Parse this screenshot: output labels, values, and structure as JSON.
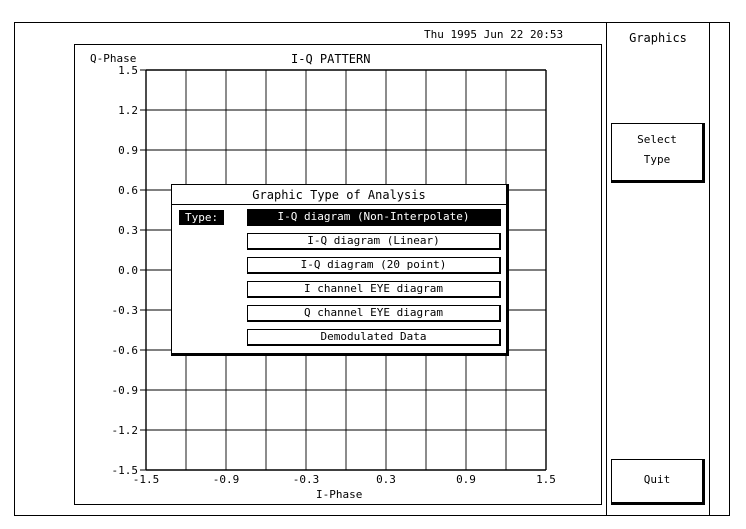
{
  "header": {
    "datetime": "Thu 1995 Jun 22 20:53"
  },
  "plot": {
    "title": "I-Q PATTERN",
    "ylabel": "Q-Phase",
    "xlabel": "I-Phase",
    "xticks": [
      "-1.5",
      "-0.9",
      "-0.3",
      "0.3",
      "0.9",
      "1.5"
    ],
    "yticks": [
      "1.5",
      "1.2",
      "0.9",
      "0.6",
      "0.3",
      "0.0",
      "-0.3",
      "-0.6",
      "-0.9",
      "-1.2",
      "-1.5"
    ],
    "xlim": [
      -1.5,
      1.5
    ],
    "ylim": [
      -1.5,
      1.5
    ]
  },
  "panel": {
    "title": "Graphics",
    "select_type": [
      "Select",
      "Type"
    ],
    "quit": "Quit"
  },
  "dialog": {
    "title": "Graphic Type of Analysis",
    "type_label": "Type:",
    "options": [
      "I-Q diagram (Non-Interpolate)",
      "I-Q diagram (Linear)",
      "I-Q diagram (20 point)",
      "I channel EYE diagram",
      "Q channel EYE diagram",
      "Demodulated Data"
    ],
    "selected_index": 0
  }
}
